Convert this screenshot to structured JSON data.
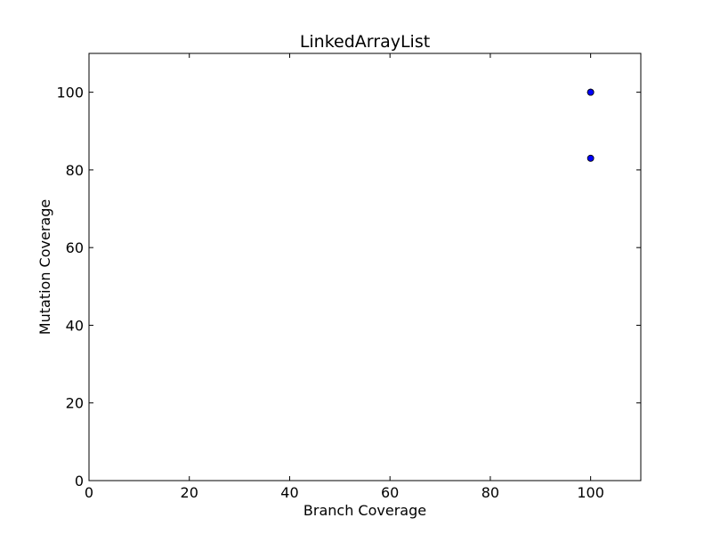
{
  "chart_data": {
    "type": "scatter",
    "title": "LinkedArrayList",
    "xlabel": "Branch Coverage",
    "ylabel": "Mutation Coverage",
    "xlim": [
      0,
      110
    ],
    "ylim": [
      0,
      110
    ],
    "xticks": [
      0,
      20,
      40,
      60,
      80,
      100
    ],
    "yticks": [
      0,
      20,
      40,
      60,
      80,
      100
    ],
    "grid": false,
    "marker_color": "#0000ff",
    "marker_edge_color": "#000000",
    "points": [
      {
        "x": 100,
        "y": 100
      },
      {
        "x": 100,
        "y": 100
      },
      {
        "x": 100,
        "y": 100
      },
      {
        "x": 100,
        "y": 83
      }
    ]
  }
}
